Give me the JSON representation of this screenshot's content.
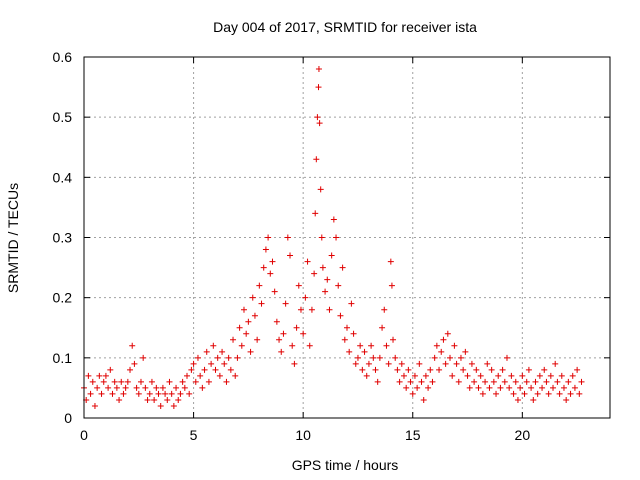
{
  "chart_data": {
    "type": "scatter",
    "title": "Day 004 of 2017, SRMTID for receiver ista",
    "xlabel": "GPS time / hours",
    "ylabel": "SRMTID / TECUs",
    "xlim": [
      0,
      24
    ],
    "ylim": [
      0,
      0.6
    ],
    "xticks": [
      0,
      5,
      10,
      15,
      20
    ],
    "yticks": [
      0,
      0.1,
      0.2,
      0.3,
      0.4,
      0.5,
      0.6
    ],
    "xtick_labels": [
      "0",
      "5",
      "10",
      "15",
      "20"
    ],
    "ytick_labels": [
      "0",
      "0.1",
      "0.2",
      "0.3",
      "0.4",
      "0.5",
      "0.6"
    ],
    "grid": true,
    "marker": "+",
    "color": "#e00000",
    "series": [
      {
        "name": "SRMTID",
        "points": [
          [
            0.0,
            0.05
          ],
          [
            0.1,
            0.03
          ],
          [
            0.2,
            0.07
          ],
          [
            0.3,
            0.04
          ],
          [
            0.4,
            0.06
          ],
          [
            0.5,
            0.02
          ],
          [
            0.6,
            0.05
          ],
          [
            0.7,
            0.07
          ],
          [
            0.8,
            0.04
          ],
          [
            0.9,
            0.06
          ],
          [
            1.0,
            0.07
          ],
          [
            1.1,
            0.05
          ],
          [
            1.2,
            0.08
          ],
          [
            1.3,
            0.04
          ],
          [
            1.4,
            0.06
          ],
          [
            1.5,
            0.05
          ],
          [
            1.6,
            0.03
          ],
          [
            1.7,
            0.06
          ],
          [
            1.8,
            0.04
          ],
          [
            1.9,
            0.05
          ],
          [
            2.0,
            0.06
          ],
          [
            2.1,
            0.08
          ],
          [
            2.2,
            0.12
          ],
          [
            2.3,
            0.09
          ],
          [
            2.4,
            0.05
          ],
          [
            2.5,
            0.04
          ],
          [
            2.6,
            0.06
          ],
          [
            2.7,
            0.1
          ],
          [
            2.8,
            0.05
          ],
          [
            2.9,
            0.03
          ],
          [
            3.0,
            0.04
          ],
          [
            3.1,
            0.06
          ],
          [
            3.2,
            0.03
          ],
          [
            3.3,
            0.05
          ],
          [
            3.4,
            0.04
          ],
          [
            3.5,
            0.02
          ],
          [
            3.6,
            0.05
          ],
          [
            3.7,
            0.04
          ],
          [
            3.8,
            0.03
          ],
          [
            3.9,
            0.06
          ],
          [
            4.0,
            0.04
          ],
          [
            4.1,
            0.02
          ],
          [
            4.2,
            0.05
          ],
          [
            4.3,
            0.03
          ],
          [
            4.4,
            0.04
          ],
          [
            4.5,
            0.06
          ],
          [
            4.6,
            0.05
          ],
          [
            4.7,
            0.07
          ],
          [
            4.8,
            0.04
          ],
          [
            4.9,
            0.08
          ],
          [
            5.0,
            0.09
          ],
          [
            5.1,
            0.06
          ],
          [
            5.2,
            0.1
          ],
          [
            5.3,
            0.07
          ],
          [
            5.4,
            0.05
          ],
          [
            5.5,
            0.08
          ],
          [
            5.6,
            0.11
          ],
          [
            5.7,
            0.06
          ],
          [
            5.8,
            0.09
          ],
          [
            5.9,
            0.12
          ],
          [
            6.0,
            0.08
          ],
          [
            6.1,
            0.1
          ],
          [
            6.2,
            0.07
          ],
          [
            6.3,
            0.11
          ],
          [
            6.4,
            0.09
          ],
          [
            6.5,
            0.06
          ],
          [
            6.6,
            0.1
          ],
          [
            6.7,
            0.08
          ],
          [
            6.8,
            0.13
          ],
          [
            6.9,
            0.07
          ],
          [
            7.0,
            0.1
          ],
          [
            7.1,
            0.15
          ],
          [
            7.2,
            0.12
          ],
          [
            7.3,
            0.18
          ],
          [
            7.4,
            0.14
          ],
          [
            7.5,
            0.16
          ],
          [
            7.6,
            0.11
          ],
          [
            7.7,
            0.2
          ],
          [
            7.8,
            0.17
          ],
          [
            7.9,
            0.13
          ],
          [
            8.0,
            0.22
          ],
          [
            8.1,
            0.19
          ],
          [
            8.2,
            0.25
          ],
          [
            8.3,
            0.28
          ],
          [
            8.4,
            0.3
          ],
          [
            8.5,
            0.24
          ],
          [
            8.6,
            0.26
          ],
          [
            8.7,
            0.21
          ],
          [
            8.8,
            0.16
          ],
          [
            8.9,
            0.13
          ],
          [
            9.0,
            0.11
          ],
          [
            9.1,
            0.14
          ],
          [
            9.2,
            0.19
          ],
          [
            9.3,
            0.3
          ],
          [
            9.4,
            0.27
          ],
          [
            9.5,
            0.12
          ],
          [
            9.6,
            0.09
          ],
          [
            9.7,
            0.15
          ],
          [
            9.8,
            0.22
          ],
          [
            9.9,
            0.18
          ],
          [
            10.0,
            0.14
          ],
          [
            10.1,
            0.2
          ],
          [
            10.2,
            0.26
          ],
          [
            10.3,
            0.12
          ],
          [
            10.4,
            0.18
          ],
          [
            10.5,
            0.24
          ],
          [
            10.55,
            0.34
          ],
          [
            10.6,
            0.43
          ],
          [
            10.65,
            0.5
          ],
          [
            10.7,
            0.55
          ],
          [
            10.72,
            0.58
          ],
          [
            10.75,
            0.49
          ],
          [
            10.8,
            0.38
          ],
          [
            10.85,
            0.3
          ],
          [
            10.9,
            0.25
          ],
          [
            11.0,
            0.21
          ],
          [
            11.1,
            0.23
          ],
          [
            11.2,
            0.18
          ],
          [
            11.3,
            0.27
          ],
          [
            11.4,
            0.33
          ],
          [
            11.5,
            0.3
          ],
          [
            11.6,
            0.22
          ],
          [
            11.7,
            0.17
          ],
          [
            11.8,
            0.25
          ],
          [
            11.9,
            0.13
          ],
          [
            12.0,
            0.15
          ],
          [
            12.1,
            0.11
          ],
          [
            12.2,
            0.19
          ],
          [
            12.3,
            0.14
          ],
          [
            12.4,
            0.09
          ],
          [
            12.5,
            0.1
          ],
          [
            12.6,
            0.12
          ],
          [
            12.7,
            0.08
          ],
          [
            12.8,
            0.11
          ],
          [
            12.9,
            0.07
          ],
          [
            13.0,
            0.09
          ],
          [
            13.1,
            0.12
          ],
          [
            13.2,
            0.1
          ],
          [
            13.3,
            0.08
          ],
          [
            13.4,
            0.06
          ],
          [
            13.5,
            0.1
          ],
          [
            13.6,
            0.15
          ],
          [
            13.7,
            0.18
          ],
          [
            13.8,
            0.12
          ],
          [
            13.9,
            0.09
          ],
          [
            14.0,
            0.26
          ],
          [
            14.05,
            0.22
          ],
          [
            14.1,
            0.13
          ],
          [
            14.2,
            0.1
          ],
          [
            14.3,
            0.08
          ],
          [
            14.4,
            0.06
          ],
          [
            14.5,
            0.09
          ],
          [
            14.6,
            0.07
          ],
          [
            14.7,
            0.05
          ],
          [
            14.8,
            0.08
          ],
          [
            14.9,
            0.06
          ],
          [
            15.0,
            0.04
          ],
          [
            15.1,
            0.07
          ],
          [
            15.2,
            0.05
          ],
          [
            15.3,
            0.09
          ],
          [
            15.4,
            0.06
          ],
          [
            15.5,
            0.03
          ],
          [
            15.6,
            0.07
          ],
          [
            15.7,
            0.05
          ],
          [
            15.8,
            0.08
          ],
          [
            15.9,
            0.06
          ],
          [
            16.0,
            0.1
          ],
          [
            16.1,
            0.12
          ],
          [
            16.2,
            0.08
          ],
          [
            16.3,
            0.11
          ],
          [
            16.4,
            0.13
          ],
          [
            16.5,
            0.09
          ],
          [
            16.6,
            0.14
          ],
          [
            16.7,
            0.1
          ],
          [
            16.8,
            0.07
          ],
          [
            16.9,
            0.12
          ],
          [
            17.0,
            0.09
          ],
          [
            17.1,
            0.06
          ],
          [
            17.2,
            0.1
          ],
          [
            17.3,
            0.08
          ],
          [
            17.4,
            0.11
          ],
          [
            17.5,
            0.07
          ],
          [
            17.6,
            0.05
          ],
          [
            17.7,
            0.09
          ],
          [
            17.8,
            0.06
          ],
          [
            17.9,
            0.08
          ],
          [
            18.0,
            0.05
          ],
          [
            18.1,
            0.07
          ],
          [
            18.2,
            0.04
          ],
          [
            18.3,
            0.06
          ],
          [
            18.4,
            0.09
          ],
          [
            18.5,
            0.05
          ],
          [
            18.6,
            0.08
          ],
          [
            18.7,
            0.06
          ],
          [
            18.8,
            0.04
          ],
          [
            18.9,
            0.07
          ],
          [
            19.0,
            0.05
          ],
          [
            19.1,
            0.08
          ],
          [
            19.2,
            0.06
          ],
          [
            19.3,
            0.1
          ],
          [
            19.4,
            0.05
          ],
          [
            19.5,
            0.07
          ],
          [
            19.6,
            0.04
          ],
          [
            19.7,
            0.06
          ],
          [
            19.8,
            0.03
          ],
          [
            19.9,
            0.05
          ],
          [
            20.0,
            0.07
          ],
          [
            20.1,
            0.04
          ],
          [
            20.2,
            0.06
          ],
          [
            20.3,
            0.08
          ],
          [
            20.4,
            0.05
          ],
          [
            20.5,
            0.03
          ],
          [
            20.6,
            0.06
          ],
          [
            20.7,
            0.04
          ],
          [
            20.8,
            0.07
          ],
          [
            20.9,
            0.05
          ],
          [
            21.0,
            0.08
          ],
          [
            21.1,
            0.06
          ],
          [
            21.2,
            0.04
          ],
          [
            21.3,
            0.07
          ],
          [
            21.4,
            0.05
          ],
          [
            21.5,
            0.09
          ],
          [
            21.6,
            0.06
          ],
          [
            21.7,
            0.04
          ],
          [
            21.8,
            0.07
          ],
          [
            21.9,
            0.05
          ],
          [
            22.0,
            0.03
          ],
          [
            22.1,
            0.06
          ],
          [
            22.2,
            0.04
          ],
          [
            22.3,
            0.07
          ],
          [
            22.4,
            0.05
          ],
          [
            22.5,
            0.08
          ],
          [
            22.6,
            0.04
          ],
          [
            22.7,
            0.06
          ]
        ]
      }
    ]
  }
}
